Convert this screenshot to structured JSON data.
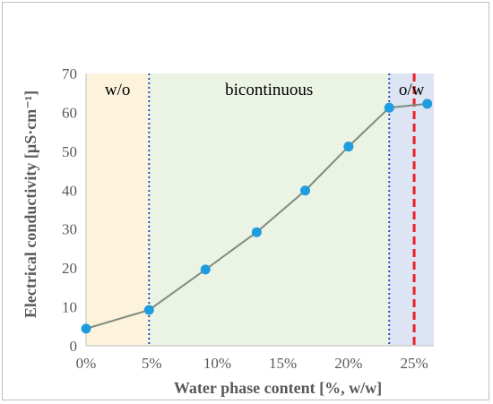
{
  "chart_data": {
    "type": "scatter",
    "title": "",
    "xlabel": "Water phase content [%, w/w]",
    "ylabel": "Electrical conductivity [µS·cm⁻¹]",
    "xlim": [
      0,
      26.5
    ],
    "ylim": [
      0,
      70
    ],
    "x_ticks": [
      0,
      5,
      10,
      15,
      20,
      25
    ],
    "x_tick_labels": [
      "0%",
      "5%",
      "10%",
      "15%",
      "20%",
      "25%"
    ],
    "y_ticks": [
      0,
      10,
      20,
      30,
      40,
      50,
      60,
      70
    ],
    "y_tick_labels": [
      "0",
      "10",
      "20",
      "30",
      "40",
      "50",
      "60",
      "70"
    ],
    "grid": false,
    "legend": "none",
    "series": [
      {
        "x": [
          0,
          4.8,
          9.1,
          13.0,
          16.7,
          20.0,
          23.1,
          26.0
        ],
        "y": [
          4.4,
          9.2,
          19.6,
          29.2,
          39.9,
          51.2,
          61.2,
          62.2
        ],
        "marker_color": "#1f9be0",
        "line_color": "#7f8c7f"
      }
    ],
    "regions": [
      {
        "label": "w/o",
        "x_start": 0,
        "x_end": 4.8,
        "color": "#fdf3dc"
      },
      {
        "label": "bicontinuous",
        "x_start": 4.8,
        "x_end": 23.1,
        "color": "#eaf3e4"
      },
      {
        "label": "o/w",
        "x_start": 23.1,
        "x_end": 26.5,
        "color": "#dde4f3"
      }
    ],
    "boundary_lines": [
      {
        "x": 4.8,
        "style": "dotted",
        "color": "#2e4fbf"
      },
      {
        "x": 23.1,
        "style": "dotted",
        "color": "#2e4fbf"
      },
      {
        "x": 25.0,
        "style": "dashed",
        "color": "#e8202a"
      }
    ]
  }
}
